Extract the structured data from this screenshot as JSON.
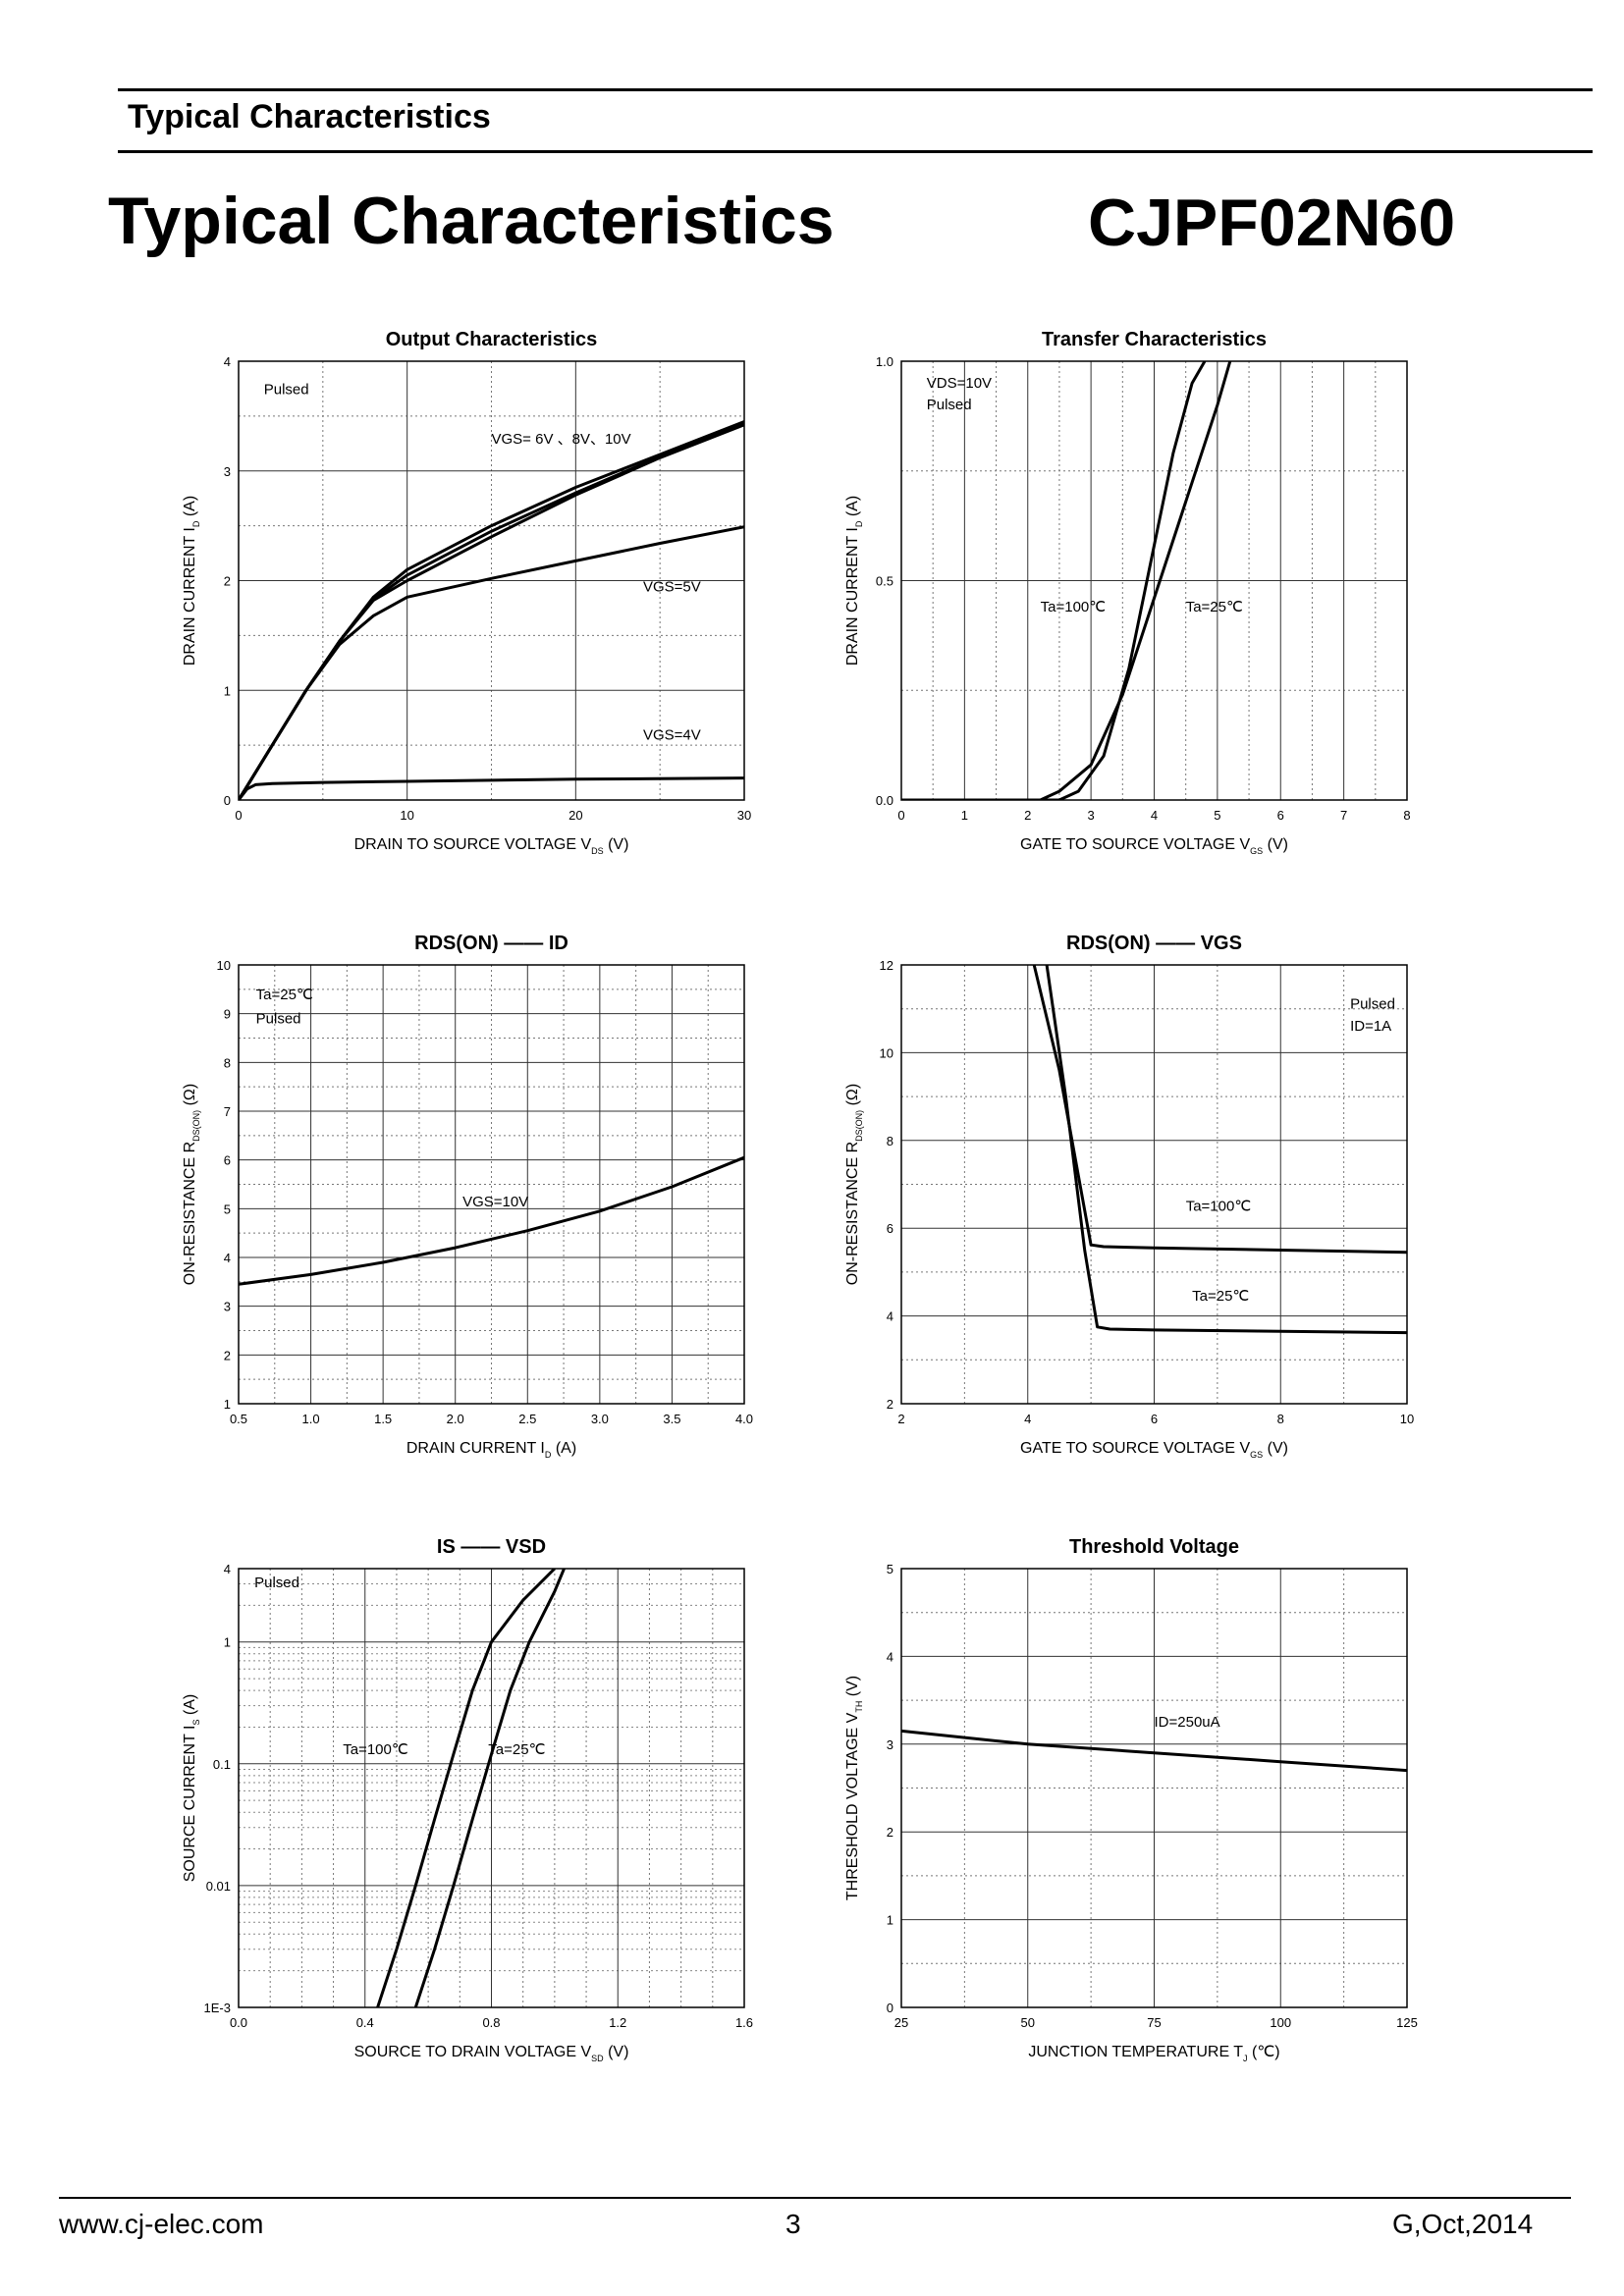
{
  "header": {
    "section_title": "Typical Characteristics",
    "main_title": "Typical Characteristics",
    "part_number": "CJPF02N60"
  },
  "footer": {
    "website": "www.cj-elec.com",
    "page": "3",
    "revision": "G,Oct,2014"
  },
  "chart_data": [
    {
      "id": "output",
      "type": "line",
      "title": "Output Characteristics",
      "xlabel": "DRAIN TO SOURCE VOLTAGE",
      "xlabel_sym": "V",
      "xlabel_sub": "DS",
      "xlabel_unit": "(V)",
      "ylabel": "DRAIN CURRENT",
      "ylabel_sym": "I",
      "ylabel_sub": "D",
      "ylabel_unit": "(A)",
      "xscale": "linear",
      "xlim": [
        0,
        30
      ],
      "ylim": [
        0,
        4
      ],
      "xticks": [
        0,
        10,
        20,
        30
      ],
      "xtick_labels": [
        "0",
        "10",
        "20",
        "30"
      ],
      "yticks": [
        0,
        1,
        2,
        3,
        4
      ],
      "ytick_labels": [
        "0",
        "1",
        "2",
        "3",
        "4"
      ],
      "annotations": [
        {
          "x": 1.5,
          "y": 3.7,
          "text": "Pulsed"
        },
        {
          "x": 15,
          "y": 3.25,
          "text": "VGS= 6V 、8V、10V"
        },
        {
          "x": 24,
          "y": 1.9,
          "text": "VGS=5V"
        },
        {
          "x": 24,
          "y": 0.55,
          "text": "VGS=4V"
        }
      ],
      "series": [
        {
          "name": "VGS=10V",
          "x": [
            0,
            2,
            4,
            6,
            8,
            10,
            15,
            20,
            25,
            30
          ],
          "y": [
            0,
            0.5,
            1.0,
            1.45,
            1.85,
            2.1,
            2.5,
            2.85,
            3.15,
            3.45
          ]
        },
        {
          "name": "VGS=8V",
          "x": [
            0,
            2,
            4,
            6,
            8,
            10,
            15,
            20,
            25,
            30
          ],
          "y": [
            0,
            0.5,
            1.0,
            1.45,
            1.83,
            2.05,
            2.45,
            2.8,
            3.13,
            3.43
          ]
        },
        {
          "name": "VGS=6V",
          "x": [
            0,
            2,
            4,
            6,
            8,
            10,
            15,
            20,
            25,
            30
          ],
          "y": [
            0,
            0.5,
            1.0,
            1.45,
            1.82,
            2.0,
            2.4,
            2.78,
            3.12,
            3.42
          ]
        },
        {
          "name": "VGS=5V",
          "x": [
            0,
            2,
            4,
            6,
            8,
            10,
            15,
            20,
            25,
            30
          ],
          "y": [
            0,
            0.5,
            1.0,
            1.42,
            1.68,
            1.85,
            2.02,
            2.18,
            2.34,
            2.49
          ]
        },
        {
          "name": "VGS=4V",
          "x": [
            0,
            0.5,
            1,
            2,
            5,
            10,
            20,
            30
          ],
          "y": [
            0,
            0.1,
            0.14,
            0.15,
            0.16,
            0.17,
            0.19,
            0.2
          ]
        }
      ]
    },
    {
      "id": "transfer",
      "type": "line",
      "title": "Transfer Characteristics",
      "xlabel": "GATE TO SOURCE VOLTAGE",
      "xlabel_sym": "V",
      "xlabel_sub": "GS",
      "xlabel_unit": "(V)",
      "ylabel": "DRAIN CURRENT",
      "ylabel_sym": "I",
      "ylabel_sub": "D",
      "ylabel_unit": "(A)",
      "xscale": "linear",
      "xlim": [
        0,
        8
      ],
      "ylim": [
        0,
        1.0
      ],
      "xticks": [
        0,
        1,
        2,
        3,
        4,
        5,
        6,
        7,
        8
      ],
      "xtick_labels": [
        "0",
        "1",
        "2",
        "3",
        "4",
        "5",
        "6",
        "7",
        "8"
      ],
      "yticks": [
        0,
        0.5,
        1.0
      ],
      "ytick_labels": [
        "0.0",
        "0.5",
        "1.0"
      ],
      "annotations": [
        {
          "x": 0.4,
          "y": 0.94,
          "text": "VDS=10V"
        },
        {
          "x": 0.4,
          "y": 0.89,
          "text": "Pulsed"
        },
        {
          "x": 2.2,
          "y": 0.43,
          "text": "Ta=100℃"
        },
        {
          "x": 4.5,
          "y": 0.43,
          "text": "Ta=25℃"
        }
      ],
      "series": [
        {
          "name": "Ta=100℃",
          "x": [
            0,
            2.2,
            2.5,
            3.0,
            3.5,
            4.0,
            4.5,
            5.0,
            5.2
          ],
          "y": [
            0,
            0,
            0.02,
            0.08,
            0.24,
            0.46,
            0.68,
            0.9,
            1.0
          ]
        },
        {
          "name": "Ta=25℃",
          "x": [
            0,
            2.5,
            2.8,
            3.2,
            3.6,
            4.0,
            4.3,
            4.6,
            4.8
          ],
          "y": [
            0,
            0,
            0.02,
            0.1,
            0.3,
            0.58,
            0.79,
            0.95,
            1.0
          ]
        }
      ]
    },
    {
      "id": "rdson_id",
      "type": "line",
      "title": "RDS(ON) —— ID",
      "xlabel": "DRAIN CURRENT",
      "xlabel_sym": "I",
      "xlabel_sub": "D",
      "xlabel_unit": "(A)",
      "ylabel": "ON-RESISTANCE",
      "ylabel_sym": "R",
      "ylabel_sub": "DS(ON)",
      "ylabel_unit": "(Ω)",
      "xscale": "linear",
      "xlim": [
        0.5,
        4.0
      ],
      "ylim": [
        1,
        10
      ],
      "xticks": [
        0.5,
        1.0,
        1.5,
        2.0,
        2.5,
        3.0,
        3.5,
        4.0
      ],
      "xtick_labels": [
        "0.5",
        "1.0",
        "1.5",
        "2.0",
        "2.5",
        "3.0",
        "3.5",
        "4.0"
      ],
      "yticks": [
        1,
        2,
        3,
        4,
        5,
        6,
        7,
        8,
        9,
        10
      ],
      "ytick_labels": [
        "1",
        "2",
        "3",
        "4",
        "5",
        "6",
        "7",
        "8",
        "9",
        "10"
      ],
      "annotations": [
        {
          "x": 0.62,
          "y": 9.3,
          "text": "Ta=25℃"
        },
        {
          "x": 0.62,
          "y": 8.8,
          "text": "Pulsed"
        },
        {
          "x": 2.05,
          "y": 5.05,
          "text": "VGS=10V"
        }
      ],
      "series": [
        {
          "name": "VGS=10V",
          "x": [
            0.5,
            1.0,
            1.5,
            2.0,
            2.5,
            3.0,
            3.5,
            4.0
          ],
          "y": [
            3.45,
            3.65,
            3.9,
            4.2,
            4.55,
            4.95,
            5.45,
            6.05
          ]
        }
      ]
    },
    {
      "id": "rdson_vgs",
      "type": "line",
      "title": "RDS(ON) —— VGS",
      "xlabel": "GATE TO SOURCE VOLTAGE",
      "xlabel_sym": "V",
      "xlabel_sub": "GS",
      "xlabel_unit": "(V)",
      "ylabel": "ON-RESISTANCE",
      "ylabel_sym": "R",
      "ylabel_sub": "DS(ON)",
      "ylabel_unit": "(Ω)",
      "xscale": "linear",
      "xlim": [
        2,
        10
      ],
      "ylim": [
        2,
        12
      ],
      "xticks": [
        2,
        4,
        6,
        8,
        10
      ],
      "xtick_labels": [
        "2",
        "4",
        "6",
        "8",
        "10"
      ],
      "yticks": [
        2,
        4,
        6,
        8,
        10,
        12
      ],
      "ytick_labels": [
        "2",
        "4",
        "6",
        "8",
        "10",
        "12"
      ],
      "annotations": [
        {
          "x": 9.1,
          "y": 11.0,
          "text": "Pulsed"
        },
        {
          "x": 9.1,
          "y": 10.5,
          "text": "ID=1A"
        },
        {
          "x": 6.5,
          "y": 6.4,
          "text": "Ta=100℃"
        },
        {
          "x": 6.6,
          "y": 4.35,
          "text": "Ta=25℃"
        }
      ],
      "series": [
        {
          "name": "Ta=100℃",
          "x": [
            4.1,
            4.5,
            4.8,
            5.0,
            5.2,
            6,
            8,
            10
          ],
          "y": [
            12,
            9.6,
            7.2,
            5.62,
            5.58,
            5.55,
            5.5,
            5.45
          ]
        },
        {
          "name": "Ta=25℃",
          "x": [
            4.3,
            4.6,
            4.9,
            5.1,
            5.3,
            6,
            8,
            10
          ],
          "y": [
            12,
            9.0,
            5.5,
            3.75,
            3.7,
            3.68,
            3.65,
            3.62
          ]
        }
      ]
    },
    {
      "id": "is_vsd",
      "type": "line",
      "title": "IS —— VSD",
      "xlabel": "SOURCE TO DRAIN VOLTAGE",
      "xlabel_sym": "V",
      "xlabel_sub": "SD",
      "xlabel_unit": "(V)",
      "ylabel": "SOURCE CURRENT",
      "ylabel_sym": "I",
      "ylabel_sub": "S",
      "ylabel_unit": "(A)",
      "xscale": "linear",
      "yscale": "log",
      "xlim": [
        0.0,
        1.6
      ],
      "ylim": [
        0.001,
        4
      ],
      "xticks": [
        0.0,
        0.4,
        0.8,
        1.2,
        1.6
      ],
      "xtick_labels": [
        "0.0",
        "0.4",
        "0.8",
        "1.2",
        "1.6"
      ],
      "yticks": [
        0.001,
        0.01,
        0.1,
        1,
        4
      ],
      "ytick_labels": [
        "1E-3",
        "0.01",
        "0.1",
        "1",
        "4"
      ],
      "annotations": [
        {
          "x": 0.05,
          "y": 2.8,
          "text": "Pulsed"
        },
        {
          "x": 0.33,
          "y": 0.12,
          "text": "Ta=100℃"
        },
        {
          "x": 0.79,
          "y": 0.12,
          "text": "Ta=25℃"
        }
      ],
      "series": [
        {
          "name": "Ta=100℃",
          "x": [
            0.44,
            0.5,
            0.56,
            0.62,
            0.68,
            0.74,
            0.8,
            0.9,
            1.0
          ],
          "y": [
            0.001,
            0.003,
            0.01,
            0.035,
            0.12,
            0.4,
            1.0,
            2.2,
            4
          ]
        },
        {
          "name": "Ta=25℃",
          "x": [
            0.56,
            0.62,
            0.68,
            0.74,
            0.8,
            0.86,
            0.92,
            1.0,
            1.03
          ],
          "y": [
            0.001,
            0.003,
            0.01,
            0.035,
            0.12,
            0.4,
            1.0,
            2.6,
            4
          ]
        }
      ]
    },
    {
      "id": "threshold",
      "type": "line",
      "title": "Threshold Voltage",
      "xlabel": "JUNCTION TEMPERATURE",
      "xlabel_sym": "T",
      "xlabel_sub": "J",
      "xlabel_unit": "(℃)",
      "ylabel": "THRESHOLD VOLTAGE",
      "ylabel_sym": "V",
      "ylabel_sub": "TH",
      "ylabel_unit": "(V)",
      "xscale": "linear",
      "xlim": [
        25,
        125
      ],
      "ylim": [
        0,
        5
      ],
      "xticks": [
        25,
        50,
        75,
        100,
        125
      ],
      "xtick_labels": [
        "25",
        "50",
        "75",
        "100",
        "125"
      ],
      "yticks": [
        0,
        1,
        2,
        3,
        4,
        5
      ],
      "ytick_labels": [
        "0",
        "1",
        "2",
        "3",
        "4",
        "5"
      ],
      "annotations": [
        {
          "x": 75,
          "y": 3.2,
          "text": "ID=250uA"
        }
      ],
      "series": [
        {
          "name": "ID=250uA",
          "x": [
            25,
            50,
            75,
            100,
            125
          ],
          "y": [
            3.15,
            3.0,
            2.9,
            2.8,
            2.7
          ]
        }
      ]
    }
  ]
}
